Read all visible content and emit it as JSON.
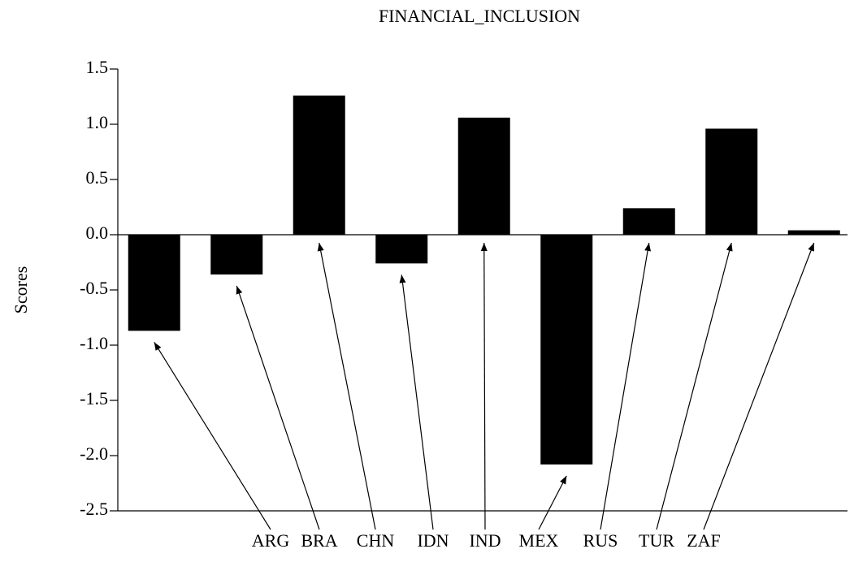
{
  "chart_data": {
    "type": "bar",
    "title": "FINANCIAL_INCLUSION",
    "ylabel": "Scores",
    "categories": [
      "ARG",
      "BRA",
      "CHN",
      "IDN",
      "IND",
      "MEX",
      "RUS",
      "TUR",
      "ZAF"
    ],
    "values": [
      -0.87,
      -0.36,
      1.26,
      -0.26,
      1.06,
      -2.08,
      0.24,
      0.96,
      0.04
    ],
    "color": "#000000",
    "ylim": [
      -2.5,
      1.5
    ],
    "yticks": [
      1.5,
      {
        "value": 1,
        "label": "1.0"
      },
      0.5,
      {
        "value": 0,
        "label": "0.0"
      },
      -0.5,
      {
        "value": -1,
        "label": "-1.0"
      },
      -1.5,
      {
        "value": -2,
        "label": "-2.0"
      },
      -2.5
    ],
    "grid": false
  }
}
